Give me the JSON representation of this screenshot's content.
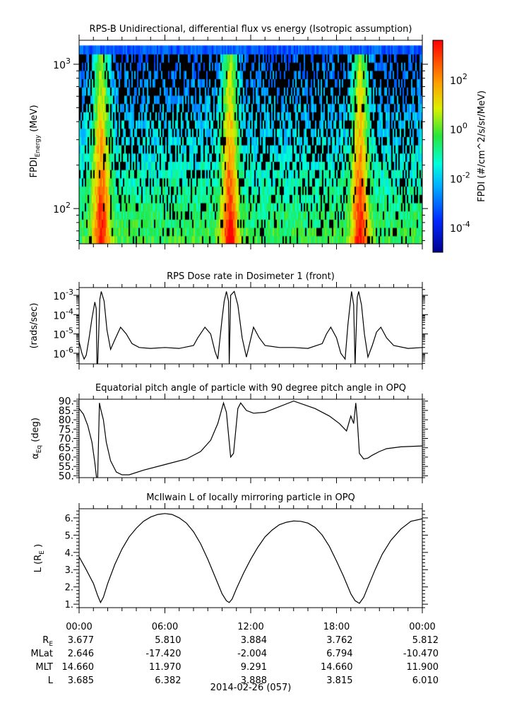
{
  "chart_data": [
    {
      "type": "heatmap",
      "title": "RPS-B  Unidirectional, differential flux vs energy (Isotropic assumption)",
      "ylabel": "FPDI",
      "ylabel_sub": "Energy",
      "ylabel_unit": "(MeV)",
      "yscale": "log",
      "ylim": [
        57,
        1466
      ],
      "data_ylim": [
        57,
        1350
      ],
      "ytick_labels": [
        {
          "v": 1000,
          "base": "10",
          "exp": "3"
        },
        {
          "v": 100,
          "base": "10",
          "exp": "2"
        }
      ],
      "xlim": [
        0,
        24
      ],
      "bright_bands_hours": [
        1.5,
        10.5,
        19.6
      ],
      "colorbar": {
        "label": "FPDI (#/cm^2/s/sr/MeV)",
        "log_range": [
          -5,
          3.6
        ],
        "ticks": [
          {
            "v": 2,
            "base": "10",
            "exp": "2"
          },
          {
            "v": 0,
            "base": "10",
            "exp": "0"
          },
          {
            "v": -2,
            "base": "10",
            "exp": "-2"
          },
          {
            "v": -4,
            "base": "10",
            "exp": "-4"
          }
        ]
      }
    },
    {
      "type": "line",
      "title": "RPS  Dose rate in Dosimeter 1 (front)",
      "ylabel": "(rads/sec)",
      "yscale": "log",
      "ylim_log10": [
        -6.55,
        -2.6
      ],
      "ytick_labels": [
        {
          "v": -3,
          "base": "10",
          "exp": "-3"
        },
        {
          "v": -4,
          "base": "10",
          "exp": "-4"
        },
        {
          "v": -5,
          "base": "10",
          "exp": "-5"
        },
        {
          "v": -6,
          "base": "10",
          "exp": "-6"
        }
      ],
      "x": [
        0,
        0.2,
        0.35,
        0.5,
        0.7,
        0.9,
        1.1,
        1.2,
        1.25,
        1.3,
        1.45,
        1.55,
        1.75,
        1.95,
        2.2,
        2.5,
        2.9,
        3.3,
        3.7,
        4.2,
        5,
        6,
        7,
        8,
        8.3,
        8.8,
        9.2,
        9.5,
        9.7,
        10.0,
        10.15,
        10.3,
        10.45,
        10.5,
        10.6,
        10.85,
        11.1,
        11.4,
        11.7,
        12.2,
        12.6,
        13,
        14,
        15,
        16,
        17,
        17.3,
        17.6,
        18,
        18.3,
        18.6,
        18.8,
        19.05,
        19.2,
        19.3,
        19.45,
        19.55,
        19.75,
        19.95,
        20.2,
        20.5,
        20.8,
        21.1,
        21.5,
        22,
        23,
        24
      ],
      "y": [
        -5.4,
        -6.0,
        -6.3,
        -6.1,
        -5.2,
        -4.2,
        -3.35,
        -3.7,
        -6.6,
        -6.6,
        -3.2,
        -2.8,
        -3.3,
        -4.8,
        -5.8,
        -5.3,
        -4.65,
        -5.0,
        -5.5,
        -5.7,
        -5.75,
        -5.7,
        -5.75,
        -5.6,
        -5.2,
        -4.65,
        -5.0,
        -5.9,
        -6.3,
        -4.2,
        -3.3,
        -2.8,
        -3.3,
        -6.6,
        -3.0,
        -2.8,
        -3.5,
        -5.2,
        -6.2,
        -4.65,
        -5.2,
        -5.6,
        -5.7,
        -5.7,
        -5.75,
        -5.5,
        -5.0,
        -4.65,
        -5.2,
        -6.0,
        -6.3,
        -4.5,
        -2.8,
        -3.5,
        -6.6,
        -3.1,
        -2.8,
        -3.5,
        -5.0,
        -6.2,
        -5.6,
        -4.9,
        -4.65,
        -5.2,
        -5.6,
        -5.75,
        -5.7
      ]
    },
    {
      "type": "line",
      "title": "Equatorial pitch angle of particle with 90 degree pitch angle in OPQ",
      "ylabel": "α",
      "ylabel_sub": "Eq",
      "ylabel_unit": "(deg)",
      "ylim": [
        49,
        91
      ],
      "ytick_labels": [
        "90.",
        "85.",
        "80.",
        "75.",
        "70.",
        "65.",
        "60.",
        "55.",
        "50."
      ],
      "ytick_values": [
        90,
        85,
        80,
        75,
        70,
        65,
        60,
        55,
        50
      ],
      "x": [
        0,
        0.3,
        0.6,
        0.9,
        1.1,
        1.22,
        1.3,
        1.42,
        1.5,
        1.7,
        1.9,
        2.2,
        2.6,
        3.0,
        3.5,
        4.5,
        6,
        7.5,
        8.5,
        9.2,
        9.7,
        10.1,
        10.3,
        10.6,
        10.8,
        11.1,
        11.3,
        11.7,
        12.2,
        13,
        15,
        16.5,
        17.5,
        18.2,
        18.7,
        19.0,
        19.2,
        19.35,
        19.45,
        19.6,
        19.9,
        20.2,
        20.5,
        21,
        21.5,
        22.5,
        24
      ],
      "y": [
        86,
        83,
        77,
        68,
        57,
        49,
        49,
        89,
        86,
        80,
        68,
        58,
        52,
        50.5,
        50.5,
        53,
        56,
        59,
        63,
        69,
        78,
        89,
        84,
        60,
        62,
        86,
        89,
        85,
        83.5,
        84,
        90,
        86,
        82,
        78,
        74,
        82,
        78,
        89,
        80,
        62,
        59,
        59.5,
        61,
        63,
        64.5,
        65.5,
        66
      ]
    },
    {
      "type": "line",
      "title": "McIlwain L of locally mirroring particle in OPQ",
      "ylabel": "L (R",
      "ylabel_sub": "E",
      "ylabel_unit": ")",
      "ylim": [
        0.8,
        6.53
      ],
      "ytick_labels": [
        "6.",
        "5.",
        "4.",
        "3.",
        "2.",
        "1."
      ],
      "ytick_values": [
        6,
        5,
        4,
        3,
        2,
        1
      ],
      "x": [
        0,
        0.5,
        1.0,
        1.3,
        1.5,
        1.7,
        2.0,
        2.5,
        3,
        3.5,
        4,
        4.5,
        5,
        5.5,
        6,
        6.5,
        7,
        7.5,
        8,
        8.5,
        9,
        9.5,
        10,
        10.3,
        10.5,
        10.7,
        11,
        11.5,
        12,
        12.5,
        13,
        13.5,
        14,
        14.5,
        15,
        15.5,
        16,
        16.5,
        17,
        17.5,
        18,
        18.5,
        19,
        19.3,
        19.6,
        19.9,
        20.2,
        20.7,
        21.2,
        21.8,
        22.5,
        23.2,
        24
      ],
      "y": [
        3.75,
        3.0,
        2.2,
        1.5,
        1.1,
        1.4,
        2.2,
        3.3,
        4.2,
        4.9,
        5.4,
        5.8,
        6.05,
        6.2,
        6.25,
        6.2,
        6.0,
        5.7,
        5.2,
        4.5,
        3.6,
        2.6,
        1.6,
        1.2,
        1.1,
        1.3,
        1.9,
        2.8,
        3.6,
        4.3,
        4.9,
        5.3,
        5.6,
        5.75,
        5.82,
        5.8,
        5.7,
        5.45,
        5.0,
        4.35,
        3.5,
        2.6,
        1.6,
        1.2,
        1.05,
        1.4,
        2.0,
        3.0,
        3.9,
        4.7,
        5.35,
        5.8,
        5.95
      ]
    }
  ],
  "time_axis": {
    "xlim_hours": [
      0,
      24
    ],
    "tick_labels": [
      "00:00",
      "06:00",
      "12:00",
      "18:00",
      "00:00"
    ],
    "date": "2014-02-26 (057)"
  },
  "ephemeris": [
    {
      "label": "R",
      "sub": "E",
      "values": [
        "3.677",
        "5.810",
        "3.884",
        "3.762",
        "5.812"
      ]
    },
    {
      "label": "MLat",
      "values": [
        "2.646",
        "-17.420",
        "-2.004",
        "6.794",
        "-10.470"
      ]
    },
    {
      "label": "MLT",
      "values": [
        "14.660",
        "11.970",
        "9.291",
        "14.660",
        "11.900"
      ]
    },
    {
      "label": "L",
      "values": [
        "3.685",
        "6.382",
        "3.888",
        "3.815",
        "6.010"
      ]
    }
  ]
}
